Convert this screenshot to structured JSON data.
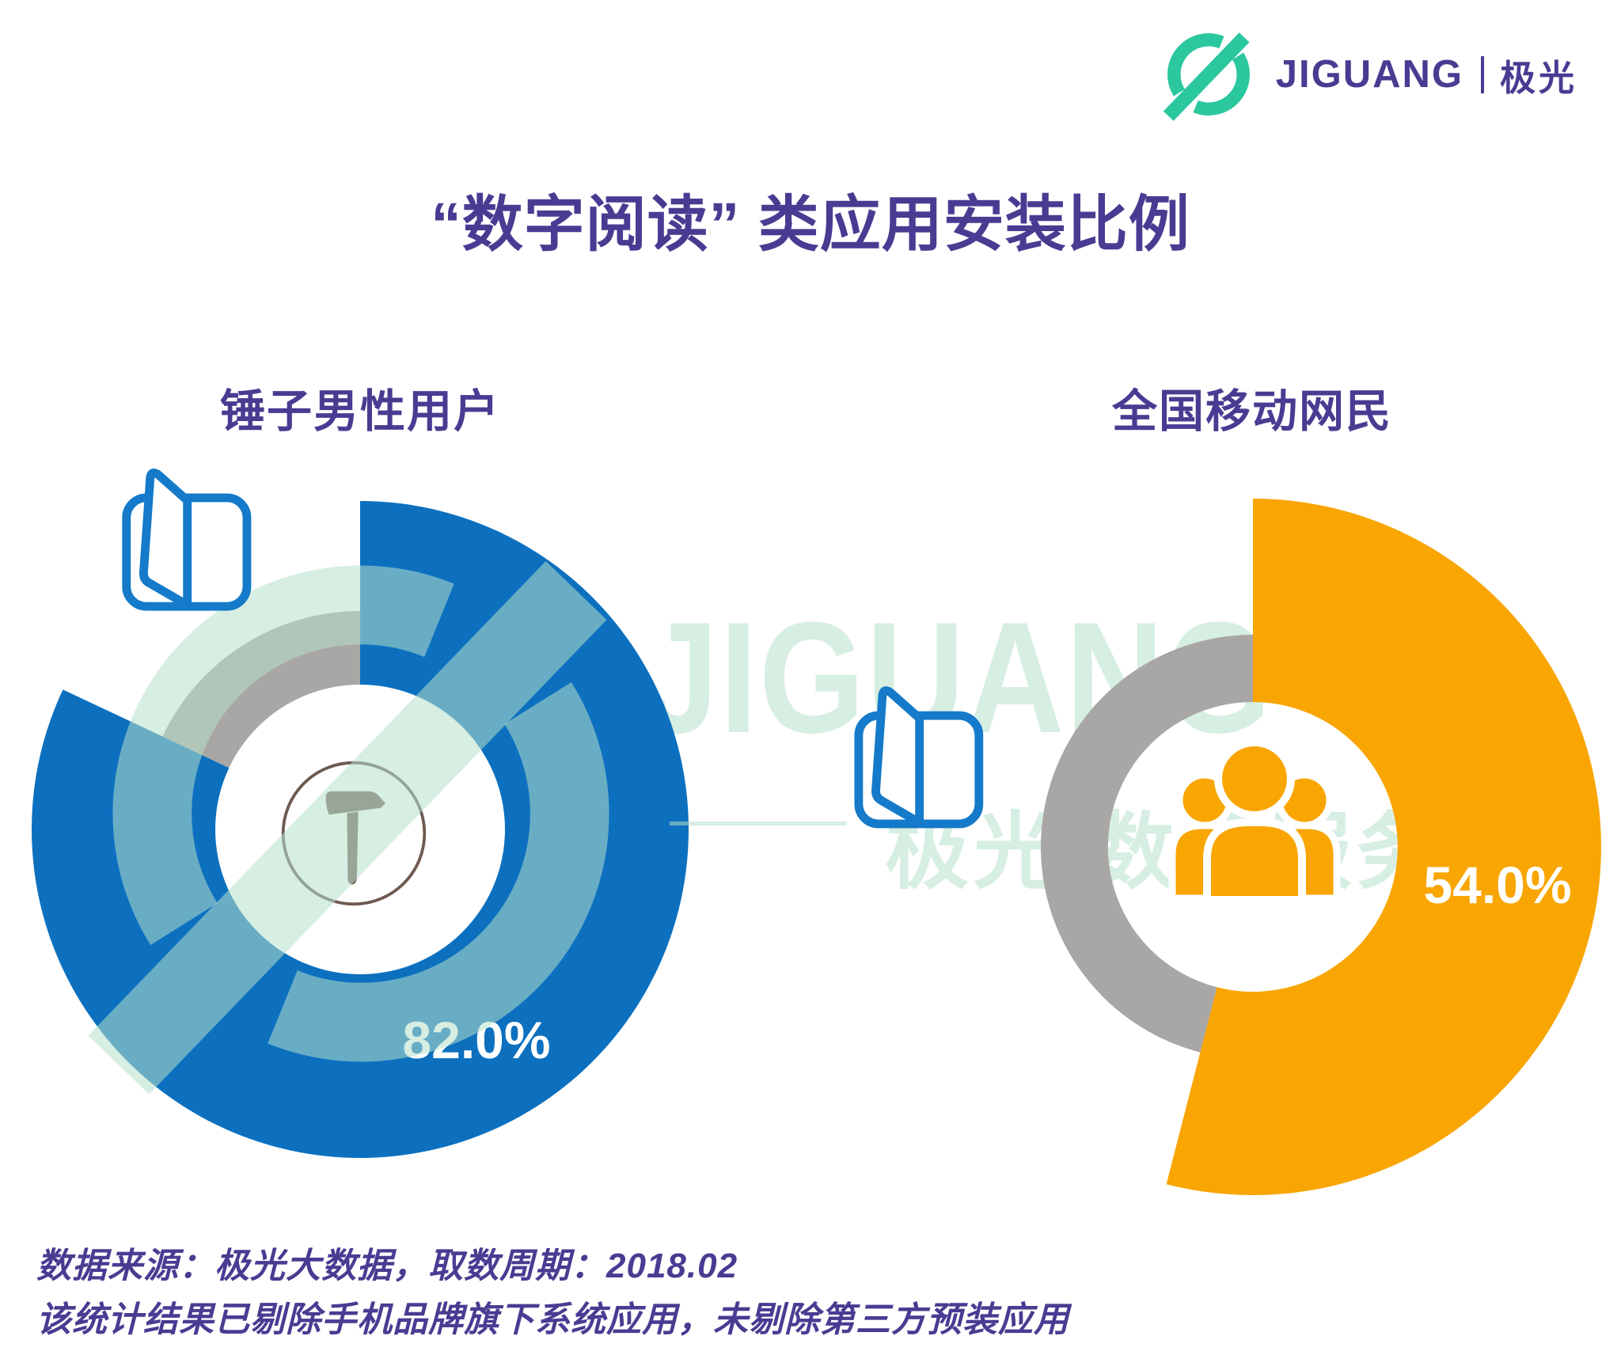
{
  "header": {
    "brand_en": "JIGUANG",
    "brand_cn": "极光",
    "logo_icon": "jiguang-circle-slash-logo",
    "brand_green": "#2BC79E",
    "brand_purple": "#4A3B92"
  },
  "title": "“数字阅读” 类应用安装比例",
  "chart_data": [
    {
      "type": "pie",
      "variant": "donut",
      "group_label": "锤子男性用户",
      "value": 82.0,
      "value_label": "82.0%",
      "remainder": 18.0,
      "color": "#0C70BF",
      "remainder_color": "#A9A7A5",
      "start_angle_deg": 0,
      "direction": "clockwise",
      "center_icon": "smartisan-hammer-logo",
      "badge_icon": "open-book-icon"
    },
    {
      "type": "pie",
      "variant": "donut",
      "group_label": "全国移动网民",
      "value": 54.0,
      "value_label": "54.0%",
      "remainder": 46.0,
      "color": "#F9A502",
      "remainder_color": "#A9A7A5",
      "start_angle_deg": 0,
      "direction": "clockwise",
      "center_icon": "people-group-icon",
      "badge_icon": "open-book-icon"
    }
  ],
  "watermark": {
    "text_en": "JIGUANG",
    "text_cn": "极光 数据服务",
    "color": "rgba(182,224,203,0.55)"
  },
  "footnote": {
    "line1": "数据来源：极光大数据，取数周期：2018.02",
    "line2": "该统计结果已剔除手机品牌旗下系统应用，未剔除第三方预装应用"
  }
}
